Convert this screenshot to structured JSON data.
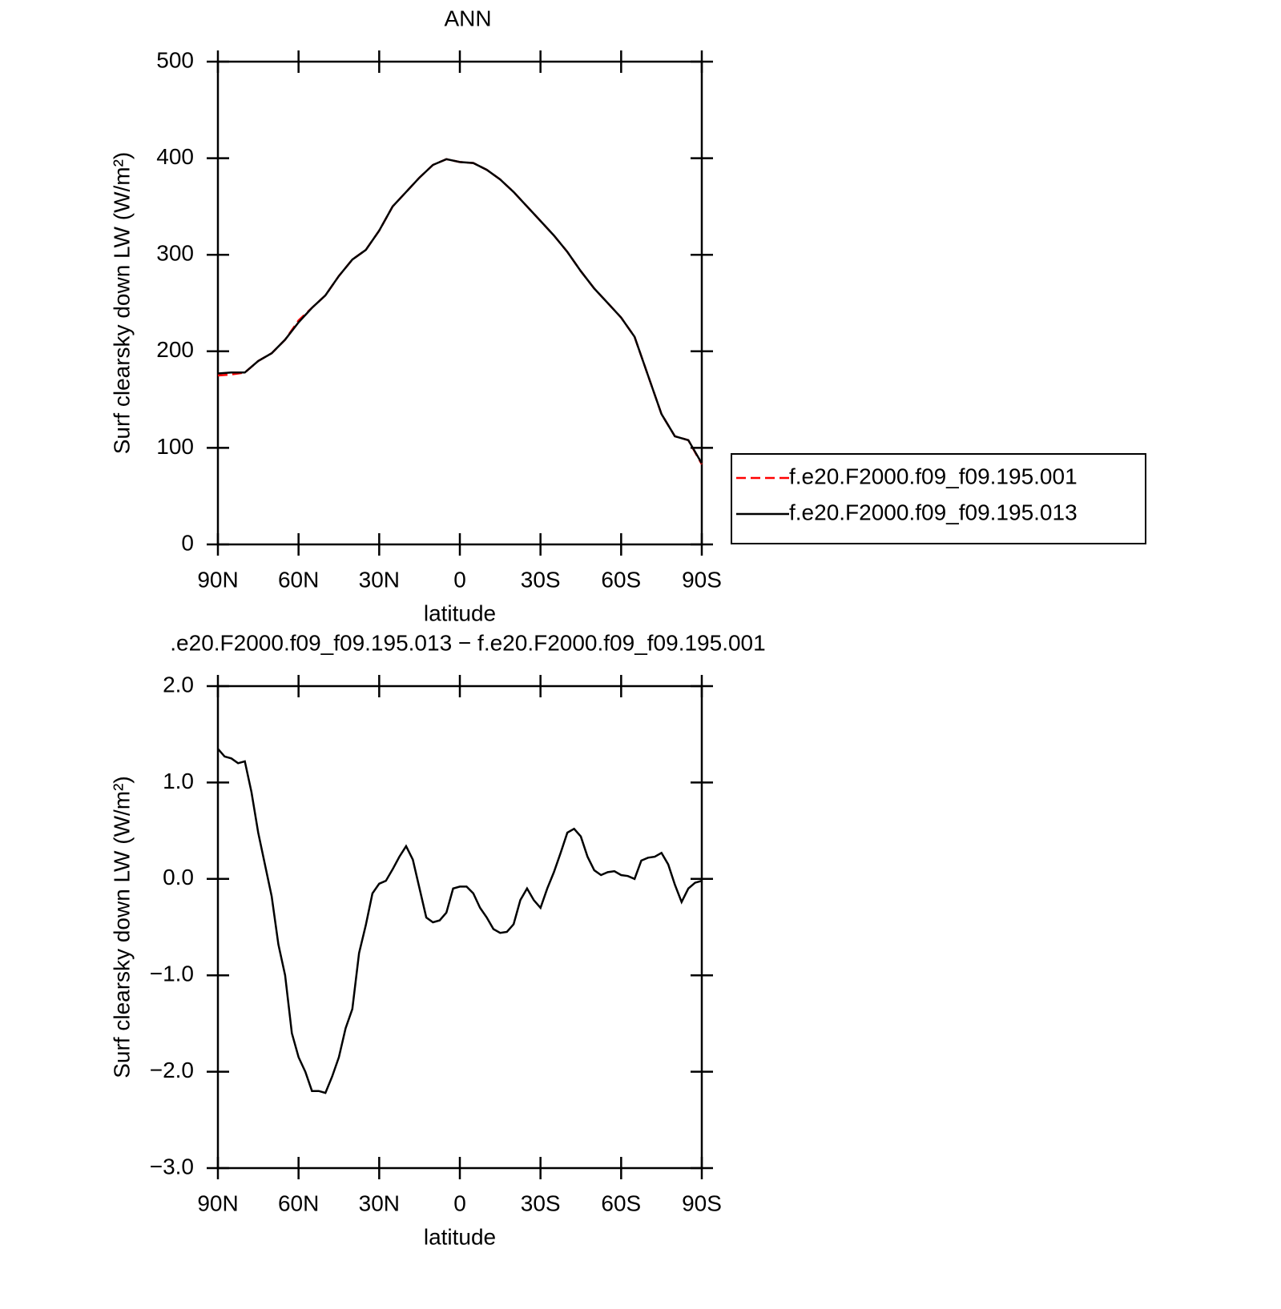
{
  "chart_data": [
    {
      "type": "line",
      "title": "ANN",
      "xlabel": "latitude",
      "ylabel": "Surf clearsky down LW (W/m²)",
      "x": [
        90,
        85,
        80,
        75,
        70,
        65,
        60,
        55,
        50,
        45,
        40,
        35,
        30,
        25,
        20,
        15,
        10,
        5,
        0,
        -5,
        -10,
        -15,
        -20,
        -25,
        -30,
        -35,
        -40,
        -45,
        -50,
        -55,
        -60,
        -65,
        -70,
        -75,
        -80,
        -85,
        -90
      ],
      "series": [
        {
          "name": "f.e20.F2000.f09_f09.195.001",
          "color": "#ff0000",
          "dash": true,
          "values": [
            175,
            176,
            178,
            190,
            198,
            212,
            232,
            245,
            258,
            278,
            295,
            305,
            325,
            350,
            365,
            380,
            393,
            399,
            396,
            395,
            388,
            378,
            365,
            350,
            335,
            320,
            303,
            283,
            265,
            250,
            235,
            215,
            175,
            135,
            112,
            108,
            83
          ]
        },
        {
          "name": "f.e20.F2000.f09_f09.195.013",
          "color": "#000000",
          "dash": false,
          "values": [
            177,
            178,
            178,
            190,
            198,
            212,
            230,
            245,
            258,
            278,
            295,
            305,
            325,
            350,
            365,
            380,
            393,
            399,
            396,
            395,
            388,
            378,
            365,
            350,
            335,
            320,
            303,
            283,
            265,
            250,
            235,
            215,
            175,
            135,
            112,
            108,
            84
          ]
        }
      ],
      "xlim": [
        90,
        -90
      ],
      "xticks": [
        {
          "value": 90,
          "label": "90N"
        },
        {
          "value": 60,
          "label": "60N"
        },
        {
          "value": 30,
          "label": "30N"
        },
        0,
        {
          "value": -30,
          "label": "30S"
        },
        {
          "value": -60,
          "label": "60S"
        },
        {
          "value": -90,
          "label": "90S"
        }
      ],
      "ylim": [
        0,
        500
      ],
      "yticks": [
        0,
        100,
        200,
        300,
        400,
        500
      ],
      "legend": "right"
    },
    {
      "type": "line",
      "title": ".e20.F2000.f09_f09.195.013 − f.e20.F2000.f09_f09.195.001",
      "xlabel": "latitude",
      "ylabel": "Surf clearsky down LW (W/m²)",
      "x": [
        90,
        87.5,
        85,
        82.5,
        80,
        77.5,
        75,
        72.5,
        70,
        67.5,
        65,
        62.5,
        60,
        57.5,
        55,
        52.5,
        50,
        47.5,
        45,
        42.5,
        40,
        37.5,
        35,
        32.5,
        30,
        27.5,
        25,
        22.5,
        20,
        17.5,
        15,
        12.5,
        10,
        7.5,
        5,
        2.5,
        0,
        -2.5,
        -5,
        -7.5,
        -10,
        -12.5,
        -15,
        -17.5,
        -20,
        -22.5,
        -25,
        -27.5,
        -30,
        -32.5,
        -35,
        -37.5,
        -40,
        -42.5,
        -45,
        -47.5,
        -50,
        -52.5,
        -55,
        -57.5,
        -60,
        -62.5,
        -65,
        -67.5,
        -70,
        -72.5,
        -75,
        -77.5,
        -80,
        -82.5,
        -85,
        -87.5,
        -90
      ],
      "series": [
        {
          "color": "#000000",
          "dash": false,
          "values": [
            1.35,
            1.27,
            1.25,
            1.2,
            1.22,
            0.9,
            0.48,
            0.15,
            -0.18,
            -0.68,
            -1.0,
            -1.6,
            -1.85,
            -2.0,
            -2.2,
            -2.2,
            -2.22,
            -2.05,
            -1.85,
            -1.55,
            -1.35,
            -0.77,
            -0.48,
            -0.15,
            -0.05,
            -0.02,
            0.1,
            0.23,
            0.34,
            0.2,
            -0.1,
            -0.4,
            -0.45,
            -0.43,
            -0.35,
            -0.1,
            -0.08,
            -0.08,
            -0.15,
            -0.3,
            -0.4,
            -0.52,
            -0.56,
            -0.55,
            -0.47,
            -0.22,
            -0.1,
            -0.22,
            -0.3,
            -0.1,
            0.07,
            0.27,
            0.48,
            0.52,
            0.44,
            0.23,
            0.09,
            0.04,
            0.07,
            0.08,
            0.04,
            0.03,
            0.0,
            0.19,
            0.22,
            0.23,
            0.27,
            0.15,
            -0.06,
            -0.24,
            -0.1,
            -0.04,
            -0.02
          ]
        }
      ],
      "xlim": [
        90,
        -90
      ],
      "xticks": [
        {
          "value": 90,
          "label": "90N"
        },
        {
          "value": 60,
          "label": "60N"
        },
        {
          "value": 30,
          "label": "30N"
        },
        0,
        {
          "value": -30,
          "label": "30S"
        },
        {
          "value": -60,
          "label": "60S"
        },
        {
          "value": -90,
          "label": "90S"
        }
      ],
      "ylim": [
        -3.0,
        2.0
      ],
      "yticks": [
        {
          "value": -3.0,
          "label": "−3.0"
        },
        {
          "value": -2.0,
          "label": "−2.0"
        },
        {
          "value": -1.0,
          "label": "−1.0"
        },
        {
          "value": 0,
          "label": "0.0"
        },
        {
          "value": 1.0,
          "label": "1.0"
        },
        {
          "value": 2.0,
          "label": "2.0"
        }
      ]
    }
  ]
}
